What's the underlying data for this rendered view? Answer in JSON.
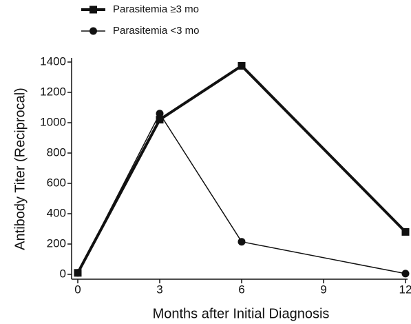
{
  "chart_data": {
    "type": "line",
    "x_label": "Months after Initial Diagnosis",
    "y_label": "Antibody Titer (Reciprocal)",
    "x": [
      0,
      3,
      6,
      12
    ],
    "series": [
      {
        "name": "Parasitemia ≥3 mo",
        "color": "#111111",
        "marker": "square",
        "values": [
          10,
          1020,
          1375,
          280
        ]
      },
      {
        "name": "Parasitemia <3 mo",
        "color": "#111111",
        "marker": "circle",
        "values": [
          10,
          1060,
          215,
          5
        ]
      }
    ],
    "xlim": [
      0,
      12
    ],
    "xticks": [
      0,
      3,
      6,
      9,
      12
    ],
    "ylim": [
      0,
      1400
    ],
    "yticks": [
      0,
      200,
      400,
      600,
      800,
      1000,
      1200,
      1400
    ],
    "grid": false
  }
}
